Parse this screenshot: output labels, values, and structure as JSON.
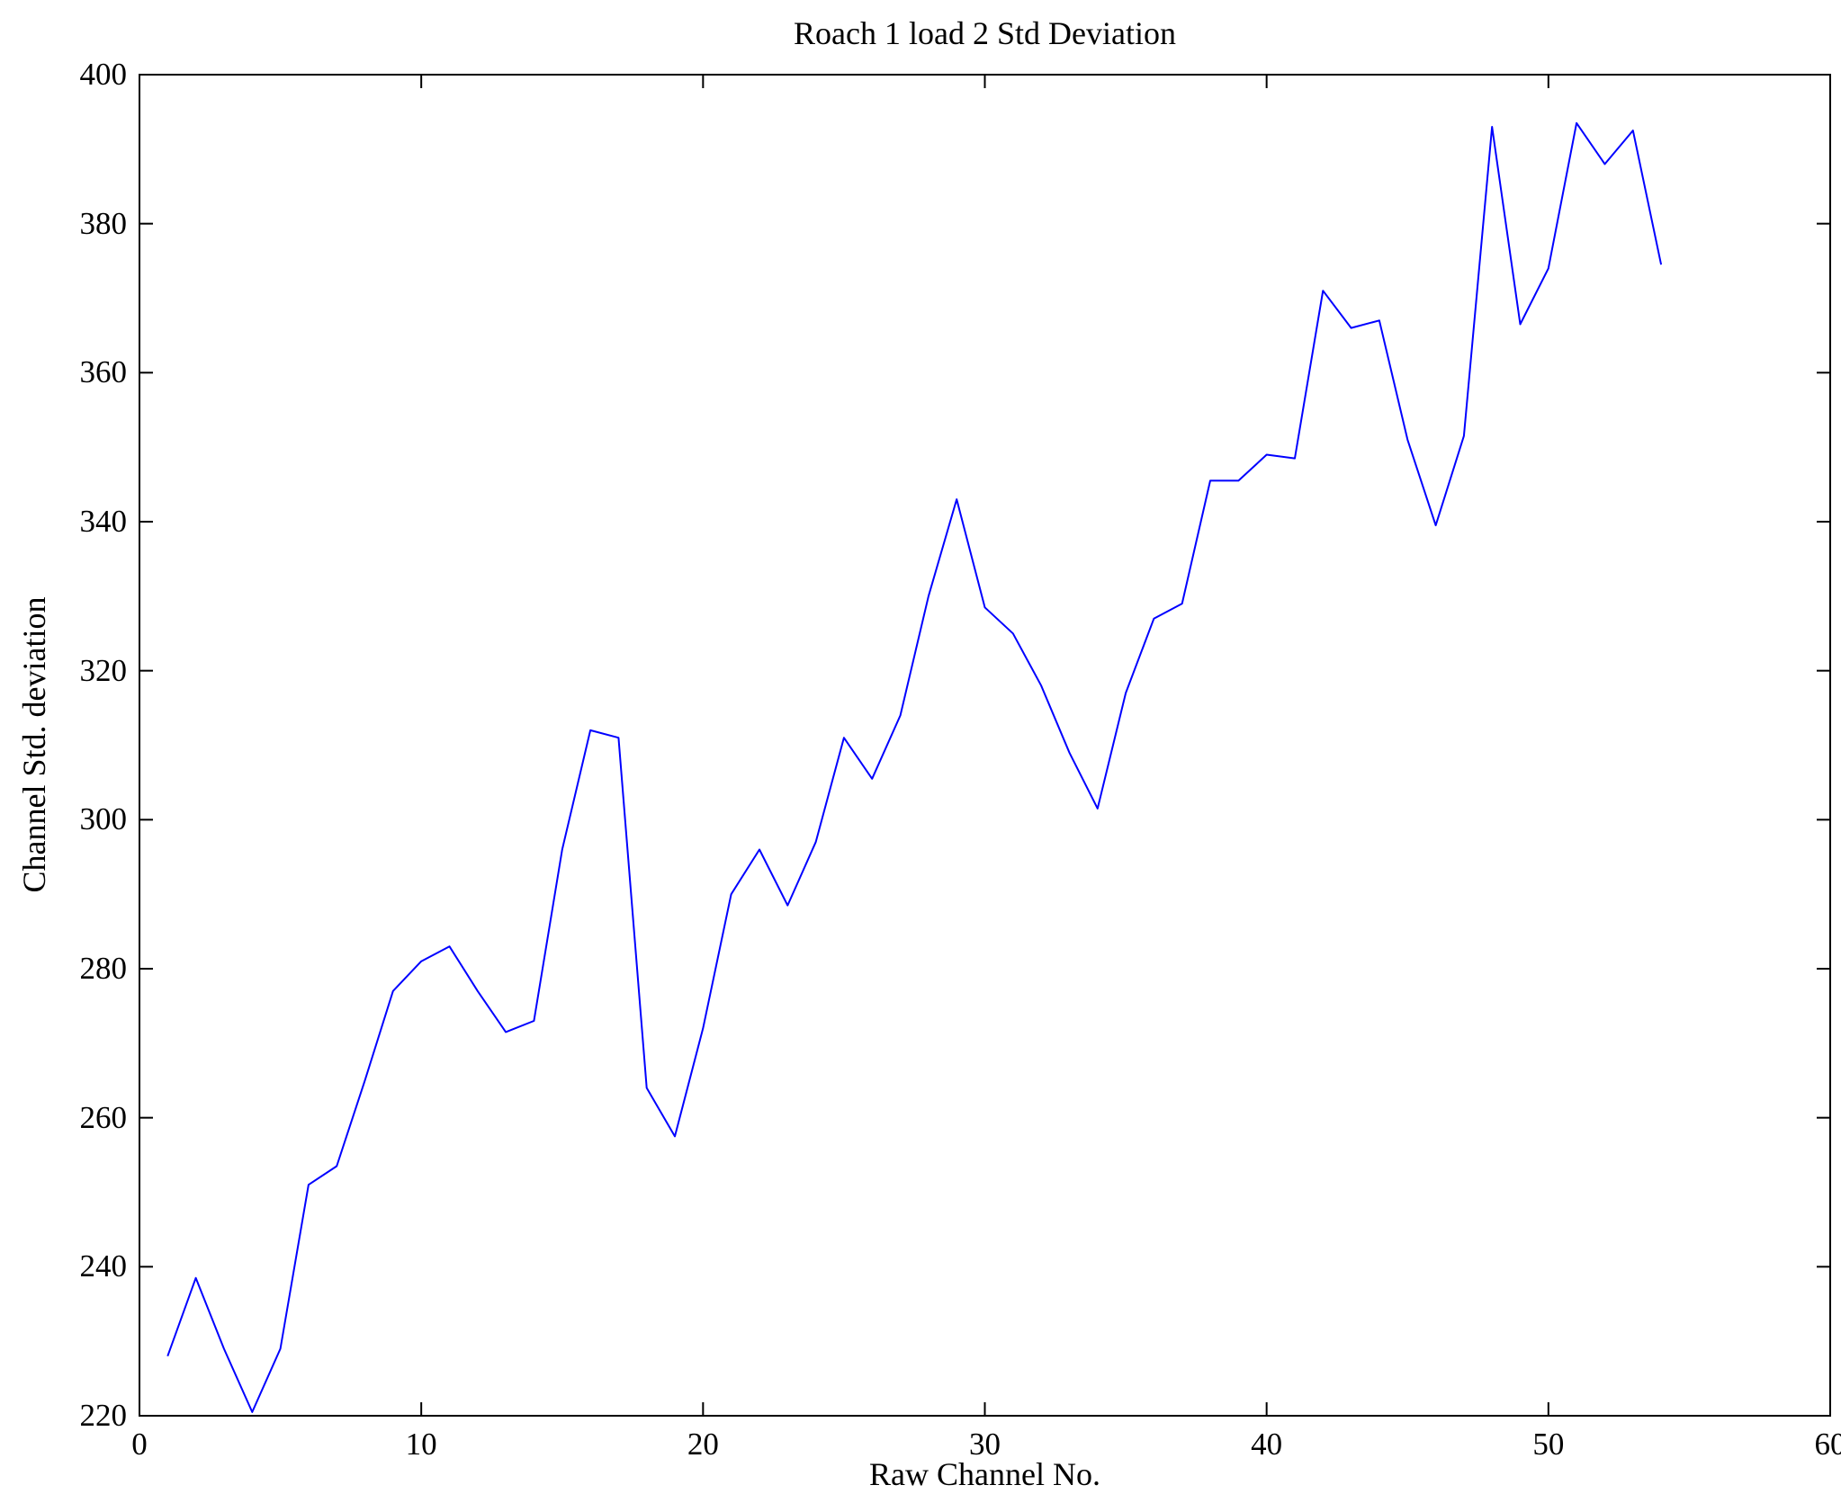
{
  "chart_data": {
    "type": "line",
    "title": "Roach 1 load 2 Std Deviation",
    "xlabel": "Raw Channel No.",
    "ylabel": "Channel Std. deviation",
    "xlim": [
      0,
      60
    ],
    "ylim": [
      220,
      400
    ],
    "x_ticks": [
      0,
      10,
      20,
      30,
      40,
      50,
      60
    ],
    "y_ticks": [
      220,
      240,
      260,
      280,
      300,
      320,
      340,
      360,
      380,
      400
    ],
    "grid": false,
    "legend": "none",
    "line_color": "#0000ff",
    "axis_color": "#000000",
    "background_color": "#ffffff",
    "series": [
      {
        "name": "Channel Std. deviation",
        "x": [
          1,
          2,
          3,
          4,
          5,
          6,
          7,
          8,
          9,
          10,
          11,
          12,
          13,
          14,
          15,
          16,
          17,
          18,
          19,
          20,
          21,
          22,
          23,
          24,
          25,
          26,
          27,
          28,
          29,
          30,
          31,
          32,
          33,
          34,
          35,
          36,
          37,
          38,
          39,
          40,
          41,
          42,
          43,
          44,
          45,
          46,
          47,
          48,
          49,
          50,
          51,
          52,
          53,
          54
        ],
        "y": [
          228,
          238.5,
          229,
          220.5,
          229,
          251,
          253.5,
          265,
          277,
          281,
          283,
          277,
          271.5,
          273,
          296,
          312,
          311,
          264,
          257.5,
          272,
          290,
          296,
          288.5,
          297,
          311,
          305.5,
          314,
          330,
          343,
          328.5,
          325,
          318,
          309,
          301.5,
          317,
          327,
          329,
          345.5,
          345.5,
          349,
          348.5,
          371,
          366,
          367,
          351,
          339.5,
          351.5,
          393,
          366.5,
          374,
          393.5,
          388,
          392.5,
          374.5
        ]
      }
    ]
  }
}
